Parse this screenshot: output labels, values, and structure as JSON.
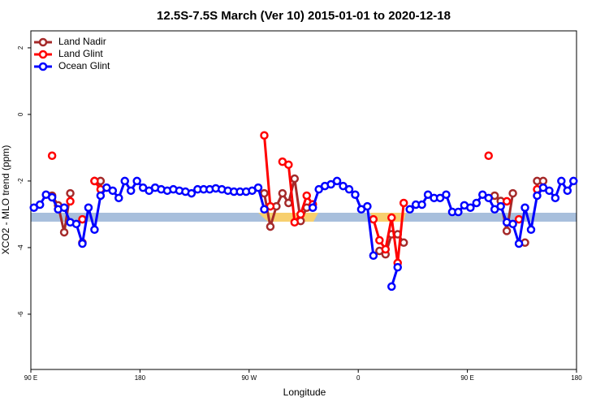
{
  "chart_data": {
    "type": "line",
    "title": "12.5S-7.5S March (Ver 10)   2015-01-01 to 2020-12-18",
    "x_label": "Longitude",
    "y_label": "XCO2 - MLO trend (ppm)",
    "xlim": [
      90,
      540
    ],
    "xticks": [
      {
        "value": 90,
        "label": "90 E"
      },
      180,
      {
        "value": 270,
        "label": "90 W"
      },
      {
        "value": 360,
        "label": "0"
      },
      {
        "value": 450,
        "label": "90 E"
      },
      {
        "value": 540,
        "label": "180"
      }
    ],
    "ylim": [
      -7.66,
      2.51
    ],
    "yticks": [
      -6,
      -4,
      -2,
      0,
      2
    ],
    "legend": "top-left",
    "x": [
      92.5,
      97.5,
      102.5,
      107.5,
      112.5,
      117.5,
      122.5,
      127.5,
      132.5,
      137.5,
      142.5,
      147.5,
      152.5,
      157.5,
      162.5,
      167.5,
      172.5,
      177.5,
      182.5,
      187.5,
      192.5,
      197.5,
      202.5,
      207.5,
      212.5,
      217.5,
      222.5,
      227.5,
      232.5,
      237.5,
      242.5,
      247.5,
      252.5,
      257.5,
      262.5,
      267.5,
      272.5,
      277.5,
      282.5,
      287.5,
      292.5,
      297.5,
      302.5,
      307.5,
      312.5,
      317.5,
      322.5,
      327.5,
      332.5,
      337.5,
      342.5,
      347.5,
      352.5,
      357.5,
      362.5,
      367.5,
      372.5,
      377.5,
      382.5,
      387.5,
      392.5,
      397.5,
      402.5,
      407.5,
      412.5,
      417.5,
      422.5,
      427.5,
      432.5,
      437.5,
      442.5,
      447.5,
      452.5,
      457.5,
      462.5,
      467.5,
      472.5,
      477.5,
      482.5,
      487.5,
      492.5,
      497.5,
      502.5,
      507.5,
      512.5,
      517.5,
      522.5,
      527.5,
      532.5,
      537.5
    ],
    "series": [
      {
        "name": "Land Nadir",
        "color": "#a52a2a",
        "values": [
          null,
          null,
          null,
          -2.44,
          -2.73,
          -3.54,
          -2.37,
          null,
          -3.85,
          null,
          -2.0,
          -2.0,
          null,
          null,
          null,
          null,
          null,
          null,
          null,
          null,
          null,
          null,
          null,
          null,
          null,
          null,
          null,
          null,
          null,
          null,
          null,
          null,
          null,
          null,
          null,
          null,
          null,
          null,
          -2.37,
          -3.37,
          -2.76,
          -2.37,
          -2.66,
          -1.93,
          -3.2,
          -2.8,
          null,
          null,
          null,
          null,
          null,
          null,
          null,
          null,
          null,
          null,
          null,
          -4.1,
          -4.2,
          -3.6,
          -3.6,
          -3.85,
          null,
          null,
          null,
          null,
          null,
          null,
          null,
          null,
          null,
          null,
          null,
          null,
          null,
          null,
          -2.44,
          -2.6,
          -3.5,
          -2.37,
          null,
          -3.85,
          null,
          -2.0,
          -2.0,
          null,
          null,
          null,
          null,
          null
        ]
      },
      {
        "name": "Land Glint",
        "color": "#ff0000",
        "values": [
          null,
          null,
          null,
          -1.24,
          null,
          null,
          -2.61,
          null,
          -3.15,
          null,
          -2.0,
          -2.25,
          null,
          null,
          null,
          null,
          null,
          null,
          null,
          null,
          null,
          null,
          null,
          null,
          null,
          null,
          null,
          null,
          null,
          null,
          null,
          null,
          null,
          null,
          null,
          null,
          null,
          null,
          -0.63,
          -2.76,
          null,
          -1.42,
          -1.51,
          -3.24,
          -3.0,
          -2.44,
          -2.7,
          null,
          null,
          null,
          null,
          null,
          null,
          null,
          null,
          null,
          -3.15,
          -3.78,
          -4.05,
          -3.1,
          -4.46,
          -2.66,
          null,
          null,
          null,
          null,
          null,
          null,
          null,
          null,
          null,
          null,
          null,
          null,
          null,
          -1.24,
          null,
          null,
          -2.61,
          null,
          -3.15,
          null,
          null,
          -2.25,
          null,
          null,
          null,
          null,
          null,
          null
        ]
      },
      {
        "name": "Ocean Glint",
        "color": "#0000ff",
        "values": [
          -2.8,
          -2.71,
          -2.41,
          -2.49,
          -2.85,
          -2.8,
          -3.24,
          -3.29,
          -3.88,
          -2.8,
          -3.46,
          -2.44,
          -2.2,
          -2.29,
          -2.51,
          -2.0,
          -2.29,
          -2.0,
          -2.2,
          -2.29,
          -2.2,
          -2.25,
          -2.29,
          -2.25,
          -2.29,
          -2.32,
          -2.37,
          -2.25,
          -2.25,
          -2.25,
          -2.22,
          -2.25,
          -2.29,
          -2.32,
          -2.32,
          -2.32,
          -2.29,
          -2.2,
          -2.85,
          null,
          null,
          null,
          null,
          null,
          null,
          null,
          -2.8,
          -2.25,
          -2.15,
          -2.1,
          -2.0,
          -2.15,
          -2.25,
          -2.41,
          -2.85,
          -2.76,
          -4.24,
          null,
          null,
          -5.17,
          -4.59,
          null,
          -2.85,
          -2.71,
          -2.71,
          -2.41,
          -2.51,
          -2.51,
          -2.41,
          -2.93,
          -2.93,
          -2.73,
          -2.8,
          -2.66,
          -2.41,
          -2.51,
          -2.85,
          -2.76,
          -3.24,
          -3.29,
          -3.88,
          -2.8,
          -3.46,
          -2.44,
          -2.2,
          -2.29,
          -2.51,
          -2.0,
          -2.29,
          -2.0
        ]
      }
    ]
  }
}
